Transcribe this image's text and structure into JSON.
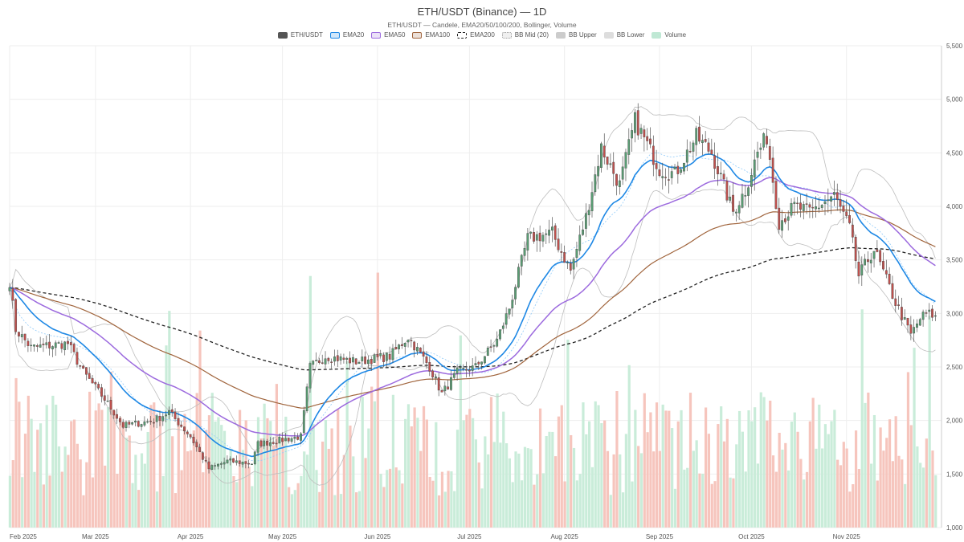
{
  "chart_data": {
    "type": "candlestick",
    "title": "ETH/USDT (Binance) — 1D",
    "subtitle": "ETH/USDT — Candele, EMA20/50/100/200, Bollinger, Volume",
    "ylim": [
      1000,
      5500
    ],
    "y_ticks": [
      1000,
      1500,
      2000,
      2500,
      3000,
      3500,
      4000,
      4500,
      5000,
      5500
    ],
    "y_tick_labels": [
      "1,000",
      "1,500",
      "2,000",
      "2,500",
      "3,000",
      "3,500",
      "4,000",
      "4,500",
      "5,000",
      "5,500"
    ],
    "x_tick_labels": [
      "Feb 2025",
      "Mar 2025",
      "Apr 2025",
      "May 2025",
      "Jun 2025",
      "Jul 2025",
      "Aug 2025",
      "Sep 2025",
      "Oct 2025",
      "Nov 2025"
    ],
    "grid": true,
    "legend_position": "top-center",
    "legend": [
      {
        "name": "ETH/USDT",
        "color": "#555555",
        "style": "fill"
      },
      {
        "name": "EMA20",
        "color": "#1e88e5",
        "style": "outline"
      },
      {
        "name": "EMA50",
        "color": "#9c6ade",
        "style": "outline"
      },
      {
        "name": "EMA100",
        "color": "#a0643c",
        "style": "outline"
      },
      {
        "name": "EMA200",
        "color": "#222222",
        "style": "dashed"
      },
      {
        "name": "BB Mid (20)",
        "color": "#bbbbbb",
        "style": "dotted"
      },
      {
        "name": "BB Upper",
        "color": "#cccccc",
        "style": "fill"
      },
      {
        "name": "BB Lower",
        "color": "#dddddd",
        "style": "fill"
      },
      {
        "name": "Volume",
        "color": "#bfe8d4",
        "style": "fill"
      }
    ],
    "colors": {
      "up": "#5a9e74",
      "down": "#c0504d",
      "vol_up": "#c9ecd9",
      "vol_down": "#f6c5bd",
      "bb": "#bdbdbd"
    },
    "price_keypoints": [
      [
        "2025-02-01",
        3300
      ],
      [
        "2025-02-03",
        2850
      ],
      [
        "2025-02-08",
        2680
      ],
      [
        "2025-02-20",
        2720
      ],
      [
        "2025-02-25",
        2450
      ],
      [
        "2025-03-04",
        2200
      ],
      [
        "2025-03-10",
        1950
      ],
      [
        "2025-03-20",
        2000
      ],
      [
        "2025-03-25",
        2080
      ],
      [
        "2025-04-01",
        1850
      ],
      [
        "2025-04-07",
        1550
      ],
      [
        "2025-04-13",
        1620
      ],
      [
        "2025-04-21",
        1600
      ],
      [
        "2025-04-23",
        1780
      ],
      [
        "2025-05-01",
        1820
      ],
      [
        "2025-05-07",
        1850
      ],
      [
        "2025-05-10",
        2500
      ],
      [
        "2025-05-15",
        2600
      ],
      [
        "2025-05-25",
        2550
      ],
      [
        "2025-06-05",
        2600
      ],
      [
        "2025-06-11",
        2780
      ],
      [
        "2025-06-18",
        2500
      ],
      [
        "2025-06-22",
        2250
      ],
      [
        "2025-06-27",
        2450
      ],
      [
        "2025-07-03",
        2500
      ],
      [
        "2025-07-10",
        2750
      ],
      [
        "2025-07-14",
        3050
      ],
      [
        "2025-07-20",
        3700
      ],
      [
        "2025-07-28",
        3750
      ],
      [
        "2025-08-03",
        3400
      ],
      [
        "2025-08-08",
        3900
      ],
      [
        "2025-08-13",
        4550
      ],
      [
        "2025-08-19",
        4200
      ],
      [
        "2025-08-24",
        4800
      ],
      [
        "2025-09-01",
        4350
      ],
      [
        "2025-09-06",
        4300
      ],
      [
        "2025-09-13",
        4650
      ],
      [
        "2025-09-18",
        4500
      ],
      [
        "2025-09-25",
        3950
      ],
      [
        "2025-09-29",
        4150
      ],
      [
        "2025-10-03",
        4500
      ],
      [
        "2025-10-06",
        4650
      ],
      [
        "2025-10-10",
        3850
      ],
      [
        "2025-10-15",
        4000
      ],
      [
        "2025-10-20",
        3950
      ],
      [
        "2025-10-28",
        4100
      ],
      [
        "2025-11-02",
        3800
      ],
      [
        "2025-11-05",
        3350
      ],
      [
        "2025-11-10",
        3600
      ],
      [
        "2025-11-17",
        3100
      ],
      [
        "2025-11-22",
        2800
      ],
      [
        "2025-11-25",
        2950
      ],
      [
        "2025-11-27",
        3000
      ],
      [
        "2025-11-30",
        2980
      ]
    ]
  }
}
